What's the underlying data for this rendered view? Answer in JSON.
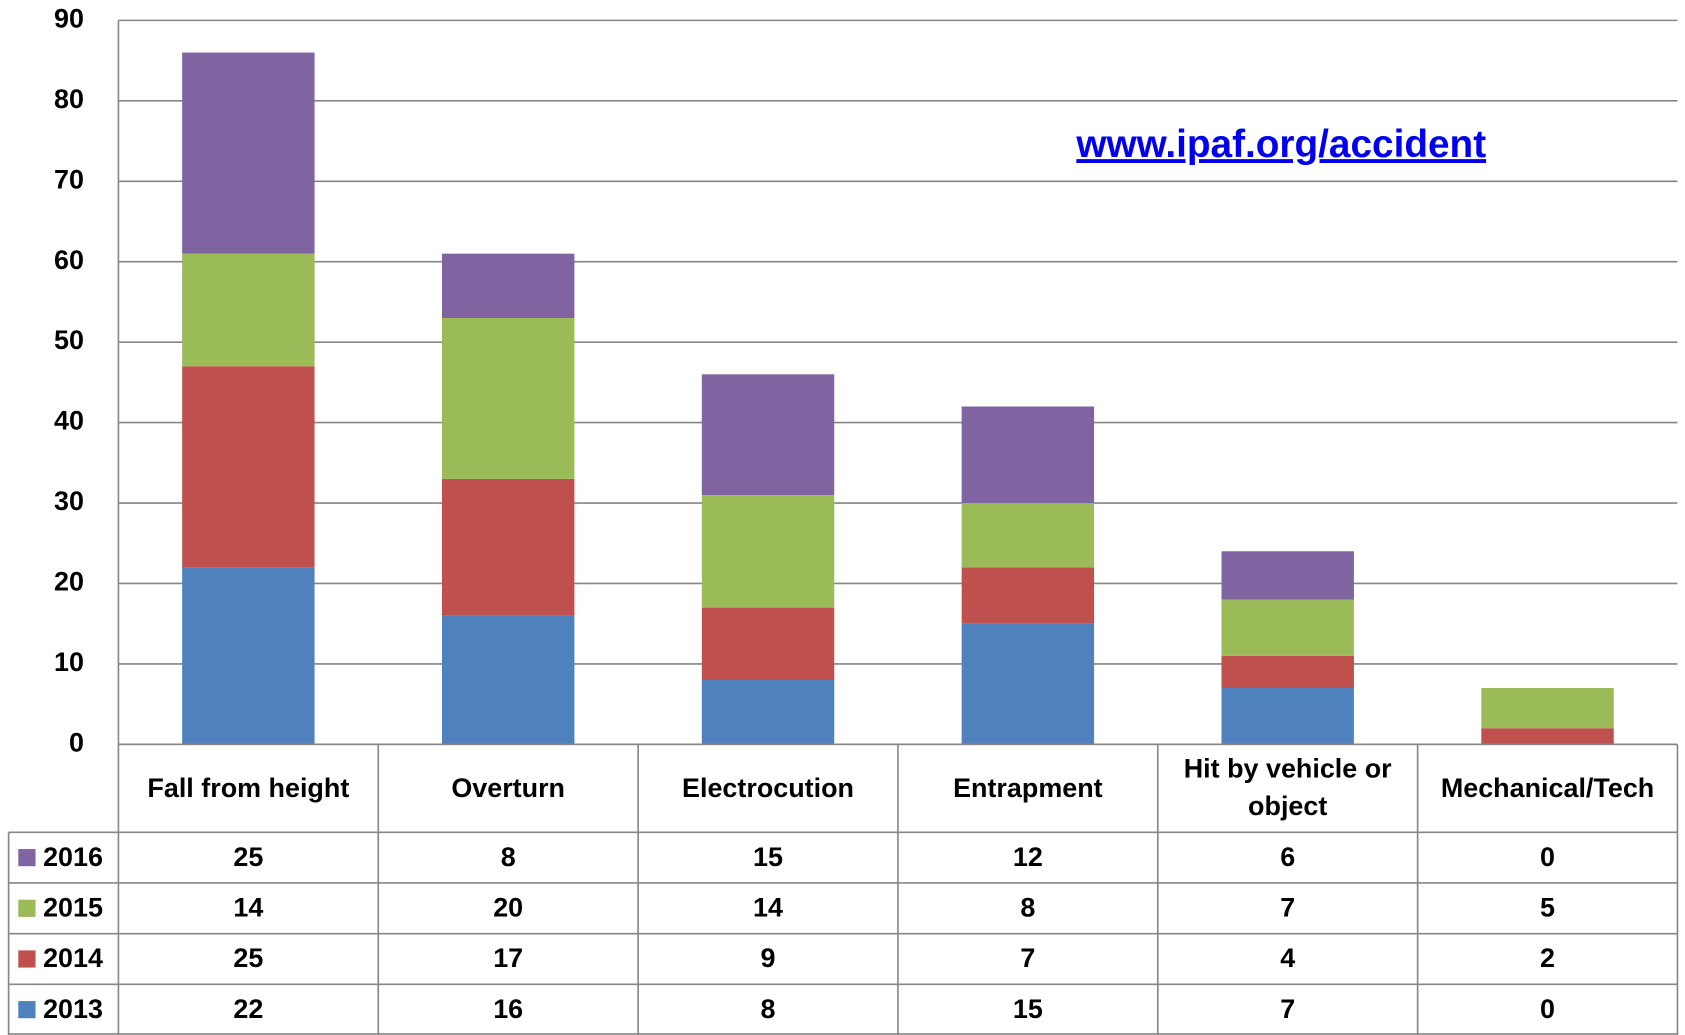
{
  "chart_data": {
    "type": "bar",
    "stacked": true,
    "annotation": "www.ipaf.org/accident",
    "categories": [
      "Fall from height",
      "Overturn",
      "Electrocution",
      "Entrapment",
      "Hit by vehicle or object",
      "Mechanical/Tech"
    ],
    "series": [
      {
        "name": "2013",
        "color": "#4f81bd",
        "values": [
          22,
          16,
          8,
          15,
          7,
          0
        ]
      },
      {
        "name": "2014",
        "color": "#c0504d",
        "values": [
          25,
          17,
          9,
          7,
          4,
          2
        ]
      },
      {
        "name": "2015",
        "color": "#9bbb59",
        "values": [
          14,
          20,
          14,
          8,
          7,
          5
        ]
      },
      {
        "name": "2016",
        "color": "#8064a2",
        "values": [
          25,
          8,
          15,
          12,
          6,
          0
        ]
      }
    ],
    "ylim": [
      0,
      90
    ],
    "yticks": [
      0,
      10,
      20,
      30,
      40,
      50,
      60,
      70,
      80,
      90
    ],
    "grid": true
  }
}
